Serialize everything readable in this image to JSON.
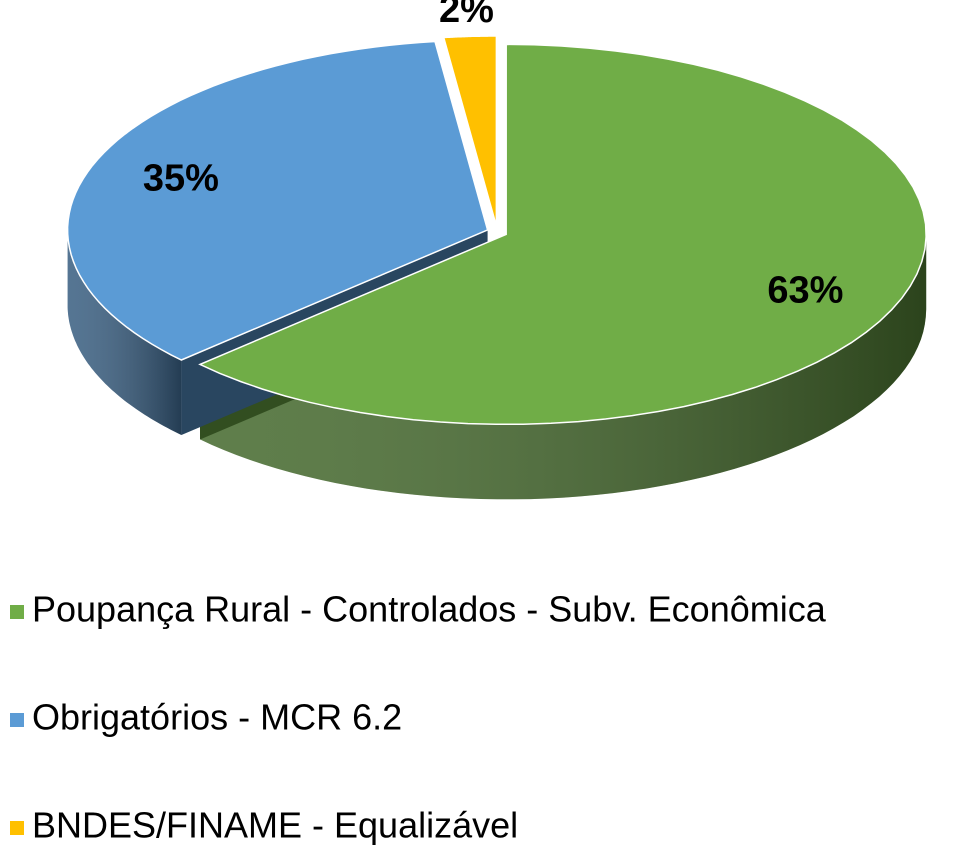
{
  "chart_data": {
    "type": "pie",
    "three_d": true,
    "categories": [
      "Poupança Rural - Controlados - Subv. Econômica",
      "Obrigatórios - MCR 6.2",
      "BNDES/FINAME - Equalizável"
    ],
    "values": [
      63,
      35,
      2
    ],
    "value_labels": [
      "63%",
      "35%",
      "2%"
    ],
    "colors": [
      "#70ad47",
      "#5b9bd5",
      "#ffc000"
    ],
    "legend": "bottom"
  }
}
